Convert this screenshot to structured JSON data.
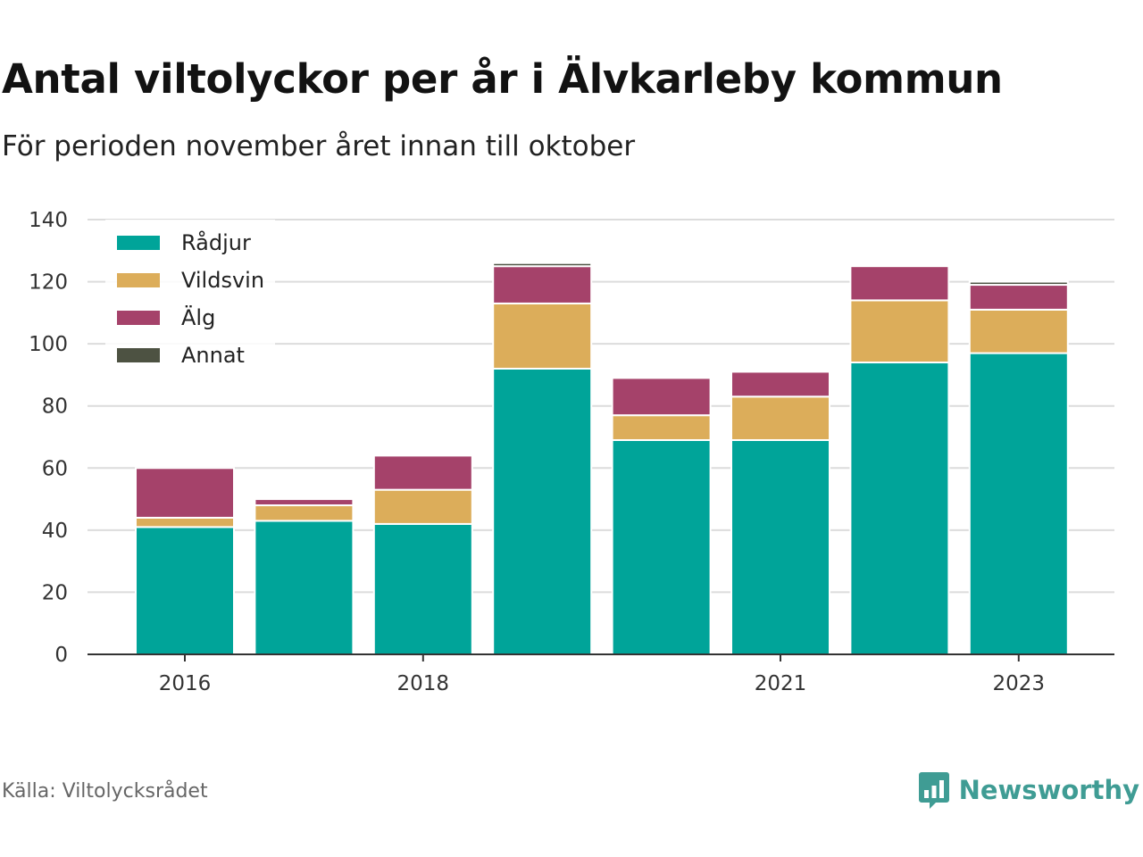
{
  "header": {
    "title": "Antal viltolyckor per år i Älvkarleby kommun",
    "subtitle": "För perioden november året innan till oktober"
  },
  "footer": {
    "source": "Källa: Viltolycksrådet",
    "brand": "Newsworthy",
    "brand_icon": "bar-chart-speech-bubble-icon",
    "brand_color": "#3f9c94"
  },
  "chart_data": {
    "type": "bar",
    "stacked": true,
    "categories": [
      "2016",
      "2017",
      "2018",
      "2019",
      "2020",
      "2021",
      "2022",
      "2023"
    ],
    "x_tick_labels": [
      "2016",
      "",
      "2018",
      "",
      "",
      "2021",
      "",
      "2023"
    ],
    "series": [
      {
        "name": "Rådjur",
        "color": "#00a499",
        "values": [
          41,
          43,
          42,
          92,
          69,
          69,
          94,
          97
        ]
      },
      {
        "name": "Vildsvin",
        "color": "#dcad5a",
        "values": [
          3,
          5,
          11,
          21,
          8,
          14,
          20,
          14
        ]
      },
      {
        "name": "Älg",
        "color": "#a5426a",
        "values": [
          16,
          2,
          11,
          12,
          12,
          8,
          11,
          8
        ]
      },
      {
        "name": "Annat",
        "color": "#4d5242",
        "values": [
          0,
          0,
          0,
          1,
          0,
          0,
          0,
          1
        ]
      }
    ],
    "ylim": [
      0,
      140
    ],
    "yticks": [
      0,
      20,
      40,
      60,
      80,
      100,
      120,
      140
    ],
    "xlabel": "",
    "ylabel": "",
    "grid": true,
    "legend_position": "top-left"
  }
}
